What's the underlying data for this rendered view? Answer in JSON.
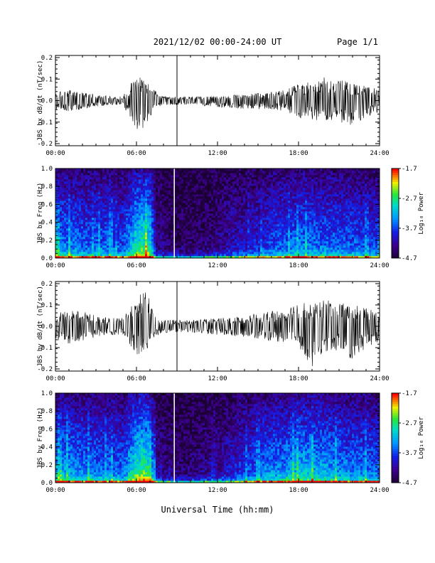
{
  "header": {
    "title": "2021/12/02  00:00-24:00 UT",
    "page": "Page 1/1"
  },
  "xlabel": "Universal Time (hh:mm)",
  "colors": {
    "trace": "#000000",
    "spectrogram_low": "#1a0030",
    "spectrogram_high": "#ff0000"
  },
  "chart_data": [
    {
      "type": "line",
      "title": "",
      "xlabel": "",
      "ylabel": "JBS bx dB/dt (nT/sec)",
      "x_ticks": [
        "00:00",
        "06:00",
        "12:00",
        "18:00",
        "24:00"
      ],
      "y_ticks": [
        "0.2",
        "0.1",
        "0.0",
        "-0.1",
        "-0.2"
      ],
      "xlim": [
        0,
        24
      ],
      "ylim": [
        -0.2,
        0.2
      ],
      "series": [
        {
          "x": [
            0,
            1,
            2,
            3,
            4,
            5,
            6,
            6.5,
            7,
            7.3,
            8,
            9,
            10,
            12,
            14,
            16,
            17,
            18,
            19,
            20,
            21,
            22,
            23,
            24
          ],
          "y_min": [
            -0.04,
            -0.05,
            -0.04,
            -0.03,
            -0.02,
            -0.02,
            -0.15,
            -0.13,
            -0.08,
            -0.04,
            -0.02,
            -0.02,
            -0.02,
            -0.03,
            -0.04,
            -0.04,
            -0.05,
            -0.08,
            -0.09,
            -0.09,
            -0.1,
            -0.12,
            -0.08,
            -0.06
          ],
          "y_max": [
            0.04,
            0.05,
            0.04,
            0.03,
            0.02,
            0.02,
            0.13,
            0.1,
            0.09,
            0.05,
            0.02,
            0.02,
            0.02,
            0.02,
            0.03,
            0.04,
            0.05,
            0.08,
            0.09,
            0.11,
            0.1,
            0.08,
            0.07,
            0.05
          ]
        }
      ],
      "spike_x": 9.0
    },
    {
      "type": "heatmap",
      "title": "",
      "xlabel": "",
      "ylabel": "JBS bx Freq (Hz)",
      "colorbar_label": "Log₁₀ Power",
      "colorbar_ticks": [
        "-1.7",
        "-2.7",
        "-3.7",
        "-4.7"
      ],
      "clim": [
        -4.7,
        -1.7
      ],
      "x_ticks": [
        "00:00",
        "06:00",
        "12:00",
        "18:00",
        "24:00"
      ],
      "y_ticks": [
        "1.0",
        "0.8",
        "0.6",
        "0.4",
        "0.2",
        "0.0"
      ],
      "xlim": [
        0,
        24
      ],
      "ylim": [
        0,
        1
      ],
      "hours": [
        0,
        1,
        2,
        3,
        4,
        5,
        6,
        6.5,
        7,
        7.5,
        8,
        9,
        10,
        11,
        12,
        13,
        14,
        15,
        16,
        17,
        18,
        19,
        20,
        21,
        22,
        23,
        24
      ],
      "activity": [
        0.65,
        0.62,
        0.55,
        0.55,
        0.55,
        0.5,
        0.9,
        0.95,
        0.9,
        0.2,
        0.15,
        0.1,
        0.1,
        0.15,
        0.2,
        0.3,
        0.35,
        0.4,
        0.5,
        0.55,
        0.6,
        0.6,
        0.55,
        0.55,
        0.55,
        0.5,
        0.45
      ],
      "gap_x": 8.8
    },
    {
      "type": "line",
      "title": "",
      "xlabel": "",
      "ylabel": "JBS by dB/dt (nT/sec)",
      "x_ticks": [
        "00:00",
        "06:00",
        "12:00",
        "18:00",
        "24:00"
      ],
      "y_ticks": [
        "0.2",
        "0.1",
        "0.0",
        "-0.1",
        "-0.2"
      ],
      "xlim": [
        0,
        24
      ],
      "ylim": [
        -0.2,
        0.2
      ],
      "series": [
        {
          "x": [
            0,
            1,
            2,
            3,
            4,
            5,
            6,
            6.5,
            7,
            7.3,
            8,
            9,
            10,
            12,
            14,
            16,
            17,
            18,
            19,
            20,
            21,
            22,
            23,
            24
          ],
          "y_min": [
            -0.06,
            -0.09,
            -0.07,
            -0.05,
            -0.04,
            -0.04,
            -0.13,
            -0.14,
            -0.12,
            -0.05,
            -0.03,
            -0.03,
            -0.03,
            -0.04,
            -0.05,
            -0.07,
            -0.08,
            -0.1,
            -0.19,
            -0.13,
            -0.11,
            -0.16,
            -0.1,
            -0.07
          ],
          "y_max": [
            0.06,
            0.08,
            0.07,
            0.05,
            0.04,
            0.04,
            0.13,
            0.2,
            0.12,
            0.05,
            0.03,
            0.03,
            0.03,
            0.04,
            0.05,
            0.07,
            0.08,
            0.12,
            0.1,
            0.13,
            0.11,
            0.1,
            0.09,
            0.07
          ]
        }
      ],
      "spike_x": 9.0
    },
    {
      "type": "heatmap",
      "title": "",
      "xlabel": "",
      "ylabel": "JBS by Freq (Hz)",
      "colorbar_label": "Log₁₀ Power",
      "colorbar_ticks": [
        "-1.7",
        "-2.7",
        "-3.7",
        "-4.7"
      ],
      "clim": [
        -4.7,
        -1.7
      ],
      "x_ticks": [
        "00:00",
        "06:00",
        "12:00",
        "18:00",
        "24:00"
      ],
      "y_ticks": [
        "1.0",
        "0.8",
        "0.6",
        "0.4",
        "0.2",
        "0.0"
      ],
      "xlim": [
        0,
        24
      ],
      "ylim": [
        0,
        1
      ],
      "hours": [
        0,
        1,
        2,
        3,
        4,
        5,
        6,
        6.5,
        7,
        7.5,
        8,
        9,
        10,
        11,
        12,
        13,
        14,
        15,
        16,
        17,
        18,
        19,
        20,
        21,
        22,
        23,
        24
      ],
      "activity": [
        0.7,
        0.68,
        0.62,
        0.6,
        0.58,
        0.55,
        0.95,
        1.0,
        0.95,
        0.25,
        0.2,
        0.15,
        0.15,
        0.2,
        0.25,
        0.35,
        0.45,
        0.55,
        0.62,
        0.65,
        0.75,
        0.75,
        0.7,
        0.65,
        0.6,
        0.6,
        0.55
      ],
      "gap_x": 8.8
    }
  ]
}
